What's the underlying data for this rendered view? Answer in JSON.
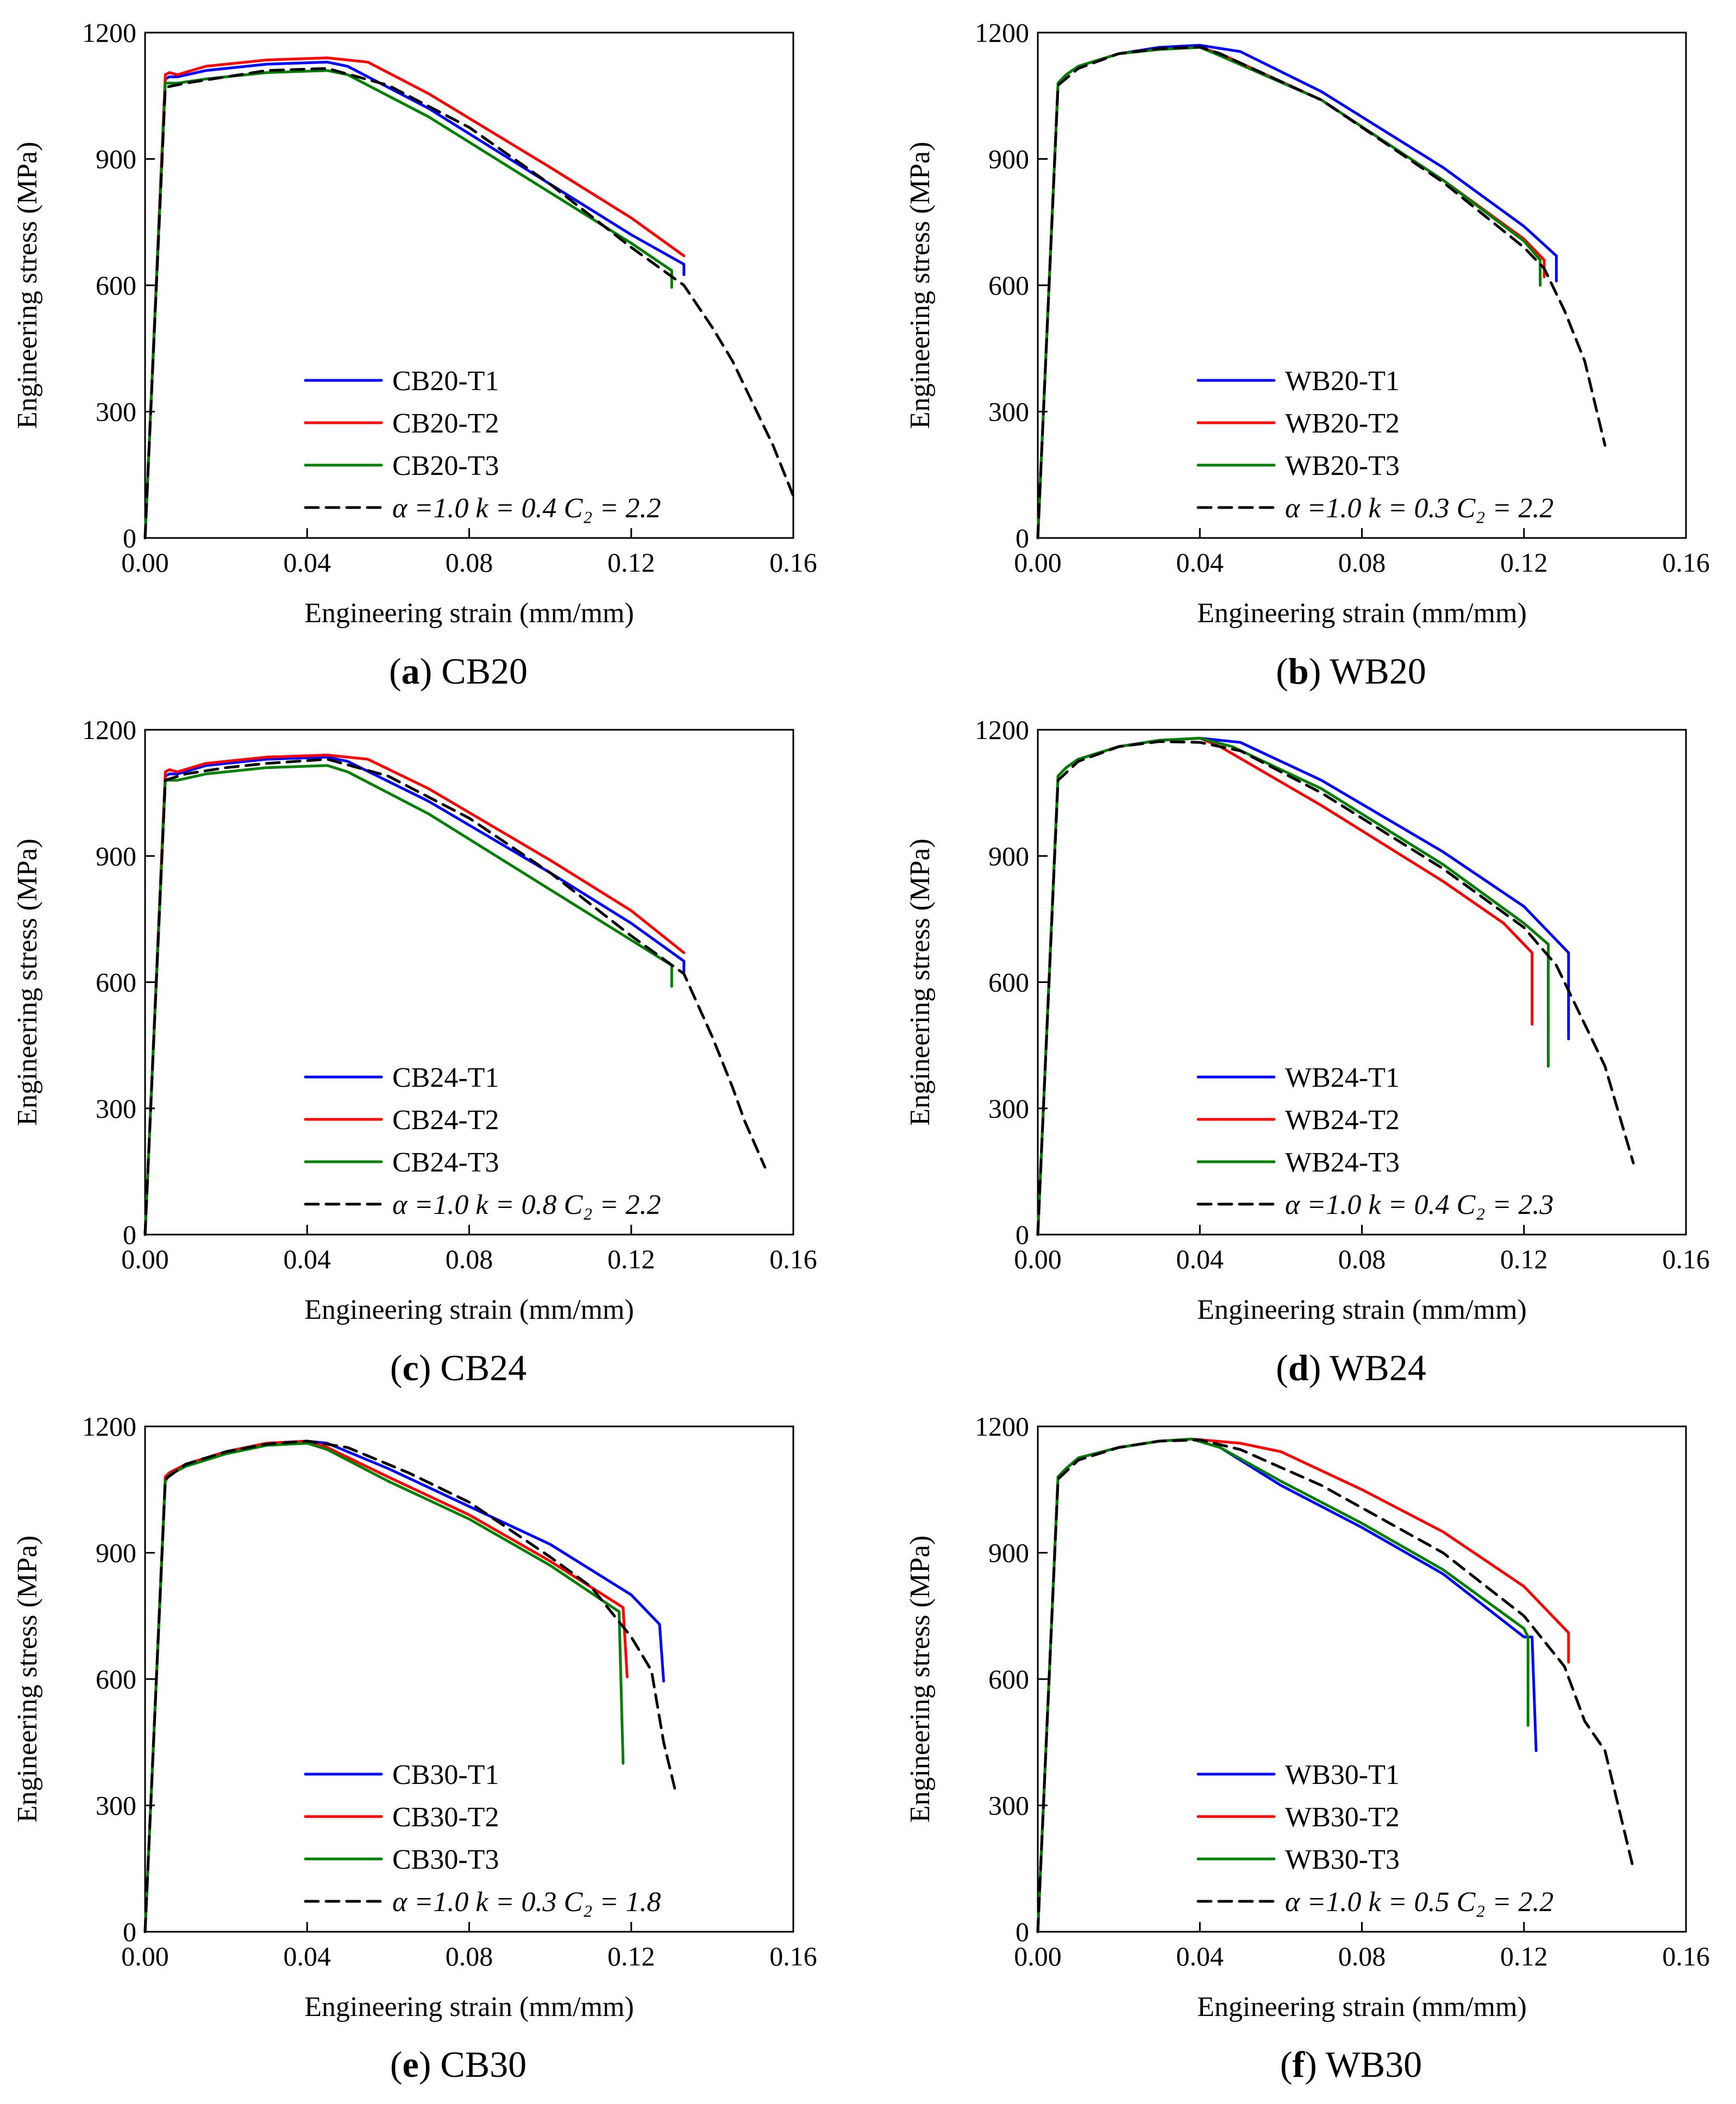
{
  "figure": {
    "common": {
      "xlabel": "Engineering strain (mm/mm)",
      "ylabel": "Engineering stress (MPa)",
      "xticks": [
        "0.00",
        "0.04",
        "0.08",
        "0.12",
        "0.16"
      ],
      "yticks": [
        "0",
        "300",
        "600",
        "900",
        "1200"
      ],
      "colors": {
        "T1": "#0000ff",
        "T2": "#ff0000",
        "T3": "#008000",
        "model": "#000000"
      }
    }
  },
  "chart_data": [
    {
      "type": "line",
      "caption": {
        "letter": "a",
        "name": "CB20"
      },
      "xlabel": "Engineering strain (mm/mm)",
      "ylabel": "Engineering stress (MPa)",
      "xlim": [
        0,
        0.16
      ],
      "ylim": [
        0,
        1200
      ],
      "legend": {
        "position": "bottom-center",
        "model": {
          "prefix": "α =1.0",
          "k": "k = 0.4",
          "c2": "C₂ = 2.2"
        }
      },
      "series": [
        {
          "name": "CB20-T1",
          "color": "#0000ff",
          "style": "solid",
          "x": [
            0,
            0.005,
            0.006,
            0.008,
            0.015,
            0.03,
            0.045,
            0.05,
            0.07,
            0.1,
            0.12,
            0.133,
            0.133
          ],
          "y": [
            0,
            1090,
            1095,
            1095,
            1110,
            1125,
            1130,
            1120,
            1020,
            840,
            720,
            650,
            625
          ]
        },
        {
          "name": "CB20-T2",
          "color": "#ff0000",
          "style": "solid",
          "x": [
            0,
            0.005,
            0.006,
            0.008,
            0.015,
            0.03,
            0.045,
            0.055,
            0.07,
            0.1,
            0.12,
            0.133
          ],
          "y": [
            0,
            1100,
            1105,
            1100,
            1120,
            1135,
            1140,
            1130,
            1055,
            880,
            760,
            670
          ]
        },
        {
          "name": "CB20-T3",
          "color": "#008000",
          "style": "solid",
          "x": [
            0,
            0.005,
            0.006,
            0.008,
            0.015,
            0.03,
            0.045,
            0.05,
            0.07,
            0.1,
            0.12,
            0.13,
            0.13
          ],
          "y": [
            0,
            1080,
            1080,
            1080,
            1090,
            1105,
            1110,
            1100,
            1000,
            820,
            700,
            635,
            595
          ]
        },
        {
          "name": "",
          "color": "#000000",
          "style": "dashed",
          "x": [
            0,
            0.005,
            0.01,
            0.02,
            0.03,
            0.045,
            0.06,
            0.08,
            0.1,
            0.12,
            0.133,
            0.14,
            0.145,
            0.15,
            0.155,
            0.16
          ],
          "y": [
            0,
            1070,
            1080,
            1095,
            1110,
            1115,
            1075,
            975,
            840,
            690,
            600,
            500,
            420,
            320,
            220,
            100
          ]
        }
      ]
    },
    {
      "type": "line",
      "caption": {
        "letter": "b",
        "name": "WB20"
      },
      "xlabel": "Engineering strain (mm/mm)",
      "ylabel": "Engineering stress (MPa)",
      "xlim": [
        0,
        0.16
      ],
      "ylim": [
        0,
        1200
      ],
      "legend": {
        "position": "bottom-center",
        "model": {
          "prefix": "α =1.0",
          "k": "k = 0.3",
          "c2": "C₂ = 2.2"
        }
      },
      "series": [
        {
          "name": "WB20-T1",
          "color": "#0000ff",
          "style": "solid",
          "x": [
            0,
            0.005,
            0.007,
            0.01,
            0.02,
            0.03,
            0.04,
            0.05,
            0.07,
            0.1,
            0.12,
            0.128,
            0.128
          ],
          "y": [
            0,
            1080,
            1100,
            1120,
            1150,
            1165,
            1170,
            1155,
            1060,
            880,
            740,
            670,
            610
          ]
        },
        {
          "name": "WB20-T2",
          "color": "#ff0000",
          "style": "solid",
          "x": [
            0,
            0.005,
            0.007,
            0.01,
            0.02,
            0.03,
            0.04,
            0.045,
            0.07,
            0.1,
            0.12,
            0.125,
            0.125
          ],
          "y": [
            0,
            1080,
            1100,
            1120,
            1150,
            1160,
            1165,
            1150,
            1040,
            850,
            710,
            660,
            620
          ]
        },
        {
          "name": "WB20-T3",
          "color": "#008000",
          "style": "solid",
          "x": [
            0,
            0.005,
            0.007,
            0.01,
            0.02,
            0.03,
            0.04,
            0.045,
            0.07,
            0.1,
            0.12,
            0.124,
            0.124
          ],
          "y": [
            0,
            1080,
            1100,
            1120,
            1150,
            1160,
            1165,
            1145,
            1040,
            850,
            705,
            660,
            600
          ]
        },
        {
          "name": "",
          "color": "#000000",
          "style": "dashed",
          "x": [
            0,
            0.005,
            0.01,
            0.02,
            0.03,
            0.04,
            0.045,
            0.07,
            0.1,
            0.12,
            0.125,
            0.13,
            0.135,
            0.14
          ],
          "y": [
            0,
            1075,
            1115,
            1150,
            1162,
            1166,
            1150,
            1040,
            845,
            690,
            640,
            540,
            420,
            220
          ]
        }
      ]
    },
    {
      "type": "line",
      "caption": {
        "letter": "c",
        "name": "CB24"
      },
      "xlabel": "Engineering strain (mm/mm)",
      "ylabel": "Engineering stress (MPa)",
      "xlim": [
        0,
        0.16
      ],
      "ylim": [
        0,
        1200
      ],
      "legend": {
        "position": "bottom-center",
        "model": {
          "prefix": "α =1.0",
          "k": "k = 0.8",
          "c2": "C₂ = 2.2"
        }
      },
      "series": [
        {
          "name": "CB24-T1",
          "color": "#0000ff",
          "style": "solid",
          "x": [
            0,
            0.005,
            0.006,
            0.008,
            0.015,
            0.03,
            0.045,
            0.05,
            0.07,
            0.1,
            0.12,
            0.133,
            0.133
          ],
          "y": [
            0,
            1090,
            1095,
            1095,
            1115,
            1130,
            1135,
            1125,
            1030,
            860,
            740,
            650,
            625
          ]
        },
        {
          "name": "CB24-T2",
          "color": "#ff0000",
          "style": "solid",
          "x": [
            0,
            0.005,
            0.006,
            0.008,
            0.015,
            0.03,
            0.045,
            0.055,
            0.07,
            0.1,
            0.12,
            0.133
          ],
          "y": [
            0,
            1100,
            1105,
            1100,
            1120,
            1135,
            1140,
            1130,
            1060,
            890,
            770,
            670
          ]
        },
        {
          "name": "CB24-T3",
          "color": "#008000",
          "style": "solid",
          "x": [
            0,
            0.005,
            0.006,
            0.008,
            0.015,
            0.03,
            0.045,
            0.05,
            0.07,
            0.1,
            0.12,
            0.13,
            0.13
          ],
          "y": [
            0,
            1080,
            1080,
            1080,
            1095,
            1110,
            1115,
            1100,
            1000,
            820,
            700,
            640,
            590
          ]
        },
        {
          "name": "",
          "color": "#000000",
          "style": "dashed",
          "x": [
            0,
            0.005,
            0.01,
            0.02,
            0.03,
            0.045,
            0.06,
            0.08,
            0.1,
            0.12,
            0.133,
            0.14,
            0.145,
            0.148,
            0.153
          ],
          "y": [
            0,
            1080,
            1095,
            1110,
            1120,
            1130,
            1090,
            990,
            860,
            710,
            620,
            470,
            350,
            270,
            160
          ]
        }
      ]
    },
    {
      "type": "line",
      "caption": {
        "letter": "d",
        "name": "WB24"
      },
      "xlabel": "Engineering strain (mm/mm)",
      "ylabel": "Engineering stress (MPa)",
      "xlim": [
        0,
        0.16
      ],
      "ylim": [
        0,
        1200
      ],
      "legend": {
        "position": "bottom-center",
        "model": {
          "prefix": "α =1.0",
          "k": "k = 0.4",
          "c2": "C₂ = 2.3"
        }
      },
      "series": [
        {
          "name": "WB24-T1",
          "color": "#0000ff",
          "style": "solid",
          "x": [
            0,
            0.005,
            0.007,
            0.01,
            0.02,
            0.03,
            0.04,
            0.05,
            0.07,
            0.1,
            0.12,
            0.131,
            0.131
          ],
          "y": [
            0,
            1090,
            1110,
            1130,
            1160,
            1175,
            1180,
            1170,
            1080,
            910,
            780,
            670,
            465
          ]
        },
        {
          "name": "WB24-T2",
          "color": "#ff0000",
          "style": "solid",
          "x": [
            0,
            0.005,
            0.007,
            0.01,
            0.02,
            0.03,
            0.04,
            0.045,
            0.07,
            0.1,
            0.115,
            0.122,
            0.122
          ],
          "y": [
            0,
            1090,
            1110,
            1130,
            1160,
            1175,
            1180,
            1160,
            1020,
            840,
            740,
            670,
            500
          ]
        },
        {
          "name": "WB24-T3",
          "color": "#008000",
          "style": "solid",
          "x": [
            0,
            0.005,
            0.007,
            0.01,
            0.02,
            0.03,
            0.04,
            0.048,
            0.07,
            0.1,
            0.12,
            0.126,
            0.126
          ],
          "y": [
            0,
            1090,
            1110,
            1130,
            1160,
            1175,
            1180,
            1160,
            1060,
            880,
            740,
            690,
            400
          ]
        },
        {
          "name": "",
          "color": "#000000",
          "style": "dashed",
          "x": [
            0,
            0.005,
            0.01,
            0.02,
            0.03,
            0.04,
            0.05,
            0.07,
            0.1,
            0.12,
            0.128,
            0.132,
            0.136,
            0.14,
            0.147
          ],
          "y": [
            0,
            1080,
            1125,
            1160,
            1172,
            1170,
            1150,
            1050,
            870,
            730,
            640,
            560,
            480,
            400,
            170
          ]
        }
      ]
    },
    {
      "type": "line",
      "caption": {
        "letter": "e",
        "name": "CB30"
      },
      "xlabel": "Engineering strain (mm/mm)",
      "ylabel": "Engineering stress (MPa)",
      "xlim": [
        0,
        0.16
      ],
      "ylim": [
        0,
        1200
      ],
      "legend": {
        "position": "bottom-center",
        "model": {
          "prefix": "α =1.0",
          "k": "k = 0.3",
          "c2": "C₂ = 1.8"
        }
      },
      "series": [
        {
          "name": "CB30-T1",
          "color": "#0000ff",
          "style": "solid",
          "x": [
            0,
            0.005,
            0.006,
            0.01,
            0.02,
            0.03,
            0.04,
            0.045,
            0.06,
            0.08,
            0.1,
            0.12,
            0.127,
            0.128
          ],
          "y": [
            0,
            1080,
            1090,
            1110,
            1140,
            1160,
            1165,
            1160,
            1100,
            1010,
            920,
            800,
            730,
            595
          ]
        },
        {
          "name": "CB30-T2",
          "color": "#ff0000",
          "style": "solid",
          "x": [
            0,
            0.005,
            0.006,
            0.01,
            0.02,
            0.03,
            0.04,
            0.045,
            0.06,
            0.08,
            0.1,
            0.118,
            0.119
          ],
          "y": [
            0,
            1080,
            1090,
            1110,
            1140,
            1160,
            1165,
            1150,
            1080,
            990,
            880,
            770,
            605
          ]
        },
        {
          "name": "CB30-T3",
          "color": "#008000",
          "style": "solid",
          "x": [
            0,
            0.005,
            0.006,
            0.01,
            0.02,
            0.03,
            0.04,
            0.045,
            0.06,
            0.08,
            0.1,
            0.117,
            0.118
          ],
          "y": [
            0,
            1070,
            1085,
            1105,
            1135,
            1155,
            1160,
            1145,
            1070,
            980,
            870,
            760,
            400
          ]
        },
        {
          "name": "",
          "color": "#000000",
          "style": "dashed",
          "x": [
            0,
            0.005,
            0.01,
            0.02,
            0.03,
            0.04,
            0.05,
            0.065,
            0.08,
            0.1,
            0.11,
            0.12,
            0.125,
            0.128,
            0.131
          ],
          "y": [
            0,
            1075,
            1110,
            1140,
            1158,
            1165,
            1150,
            1090,
            1020,
            890,
            820,
            700,
            620,
            450,
            330
          ]
        }
      ]
    },
    {
      "type": "line",
      "caption": {
        "letter": "f",
        "name": "WB30"
      },
      "xlabel": "Engineering strain (mm/mm)",
      "ylabel": "Engineering stress (MPa)",
      "xlim": [
        0,
        0.16
      ],
      "ylim": [
        0,
        1200
      ],
      "legend": {
        "position": "bottom-center",
        "model": {
          "prefix": "α =1.0",
          "k": "k = 0.5",
          "c2": "C₂ = 2.2"
        }
      },
      "series": [
        {
          "name": "WB30-T1",
          "color": "#0000ff",
          "style": "solid",
          "x": [
            0,
            0.005,
            0.007,
            0.01,
            0.02,
            0.03,
            0.038,
            0.045,
            0.06,
            0.08,
            0.1,
            0.12,
            0.122,
            0.123
          ],
          "y": [
            0,
            1080,
            1100,
            1125,
            1150,
            1165,
            1170,
            1150,
            1060,
            960,
            850,
            700,
            700,
            430
          ]
        },
        {
          "name": "WB30-T2",
          "color": "#ff0000",
          "style": "solid",
          "x": [
            0,
            0.005,
            0.007,
            0.01,
            0.02,
            0.03,
            0.038,
            0.05,
            0.06,
            0.08,
            0.1,
            0.12,
            0.131,
            0.131
          ],
          "y": [
            0,
            1080,
            1100,
            1125,
            1150,
            1165,
            1170,
            1160,
            1140,
            1050,
            950,
            820,
            710,
            640
          ]
        },
        {
          "name": "WB30-T3",
          "color": "#008000",
          "style": "solid",
          "x": [
            0,
            0.005,
            0.007,
            0.01,
            0.02,
            0.03,
            0.038,
            0.045,
            0.06,
            0.08,
            0.1,
            0.12,
            0.121,
            0.121
          ],
          "y": [
            0,
            1080,
            1100,
            1125,
            1150,
            1165,
            1170,
            1150,
            1070,
            970,
            860,
            720,
            700,
            490
          ]
        },
        {
          "name": "",
          "color": "#000000",
          "style": "dashed",
          "x": [
            0,
            0.005,
            0.01,
            0.02,
            0.03,
            0.04,
            0.05,
            0.07,
            0.1,
            0.12,
            0.13,
            0.135,
            0.14,
            0.147
          ],
          "y": [
            0,
            1075,
            1120,
            1150,
            1165,
            1168,
            1145,
            1060,
            900,
            750,
            630,
            500,
            430,
            150
          ]
        }
      ]
    }
  ]
}
